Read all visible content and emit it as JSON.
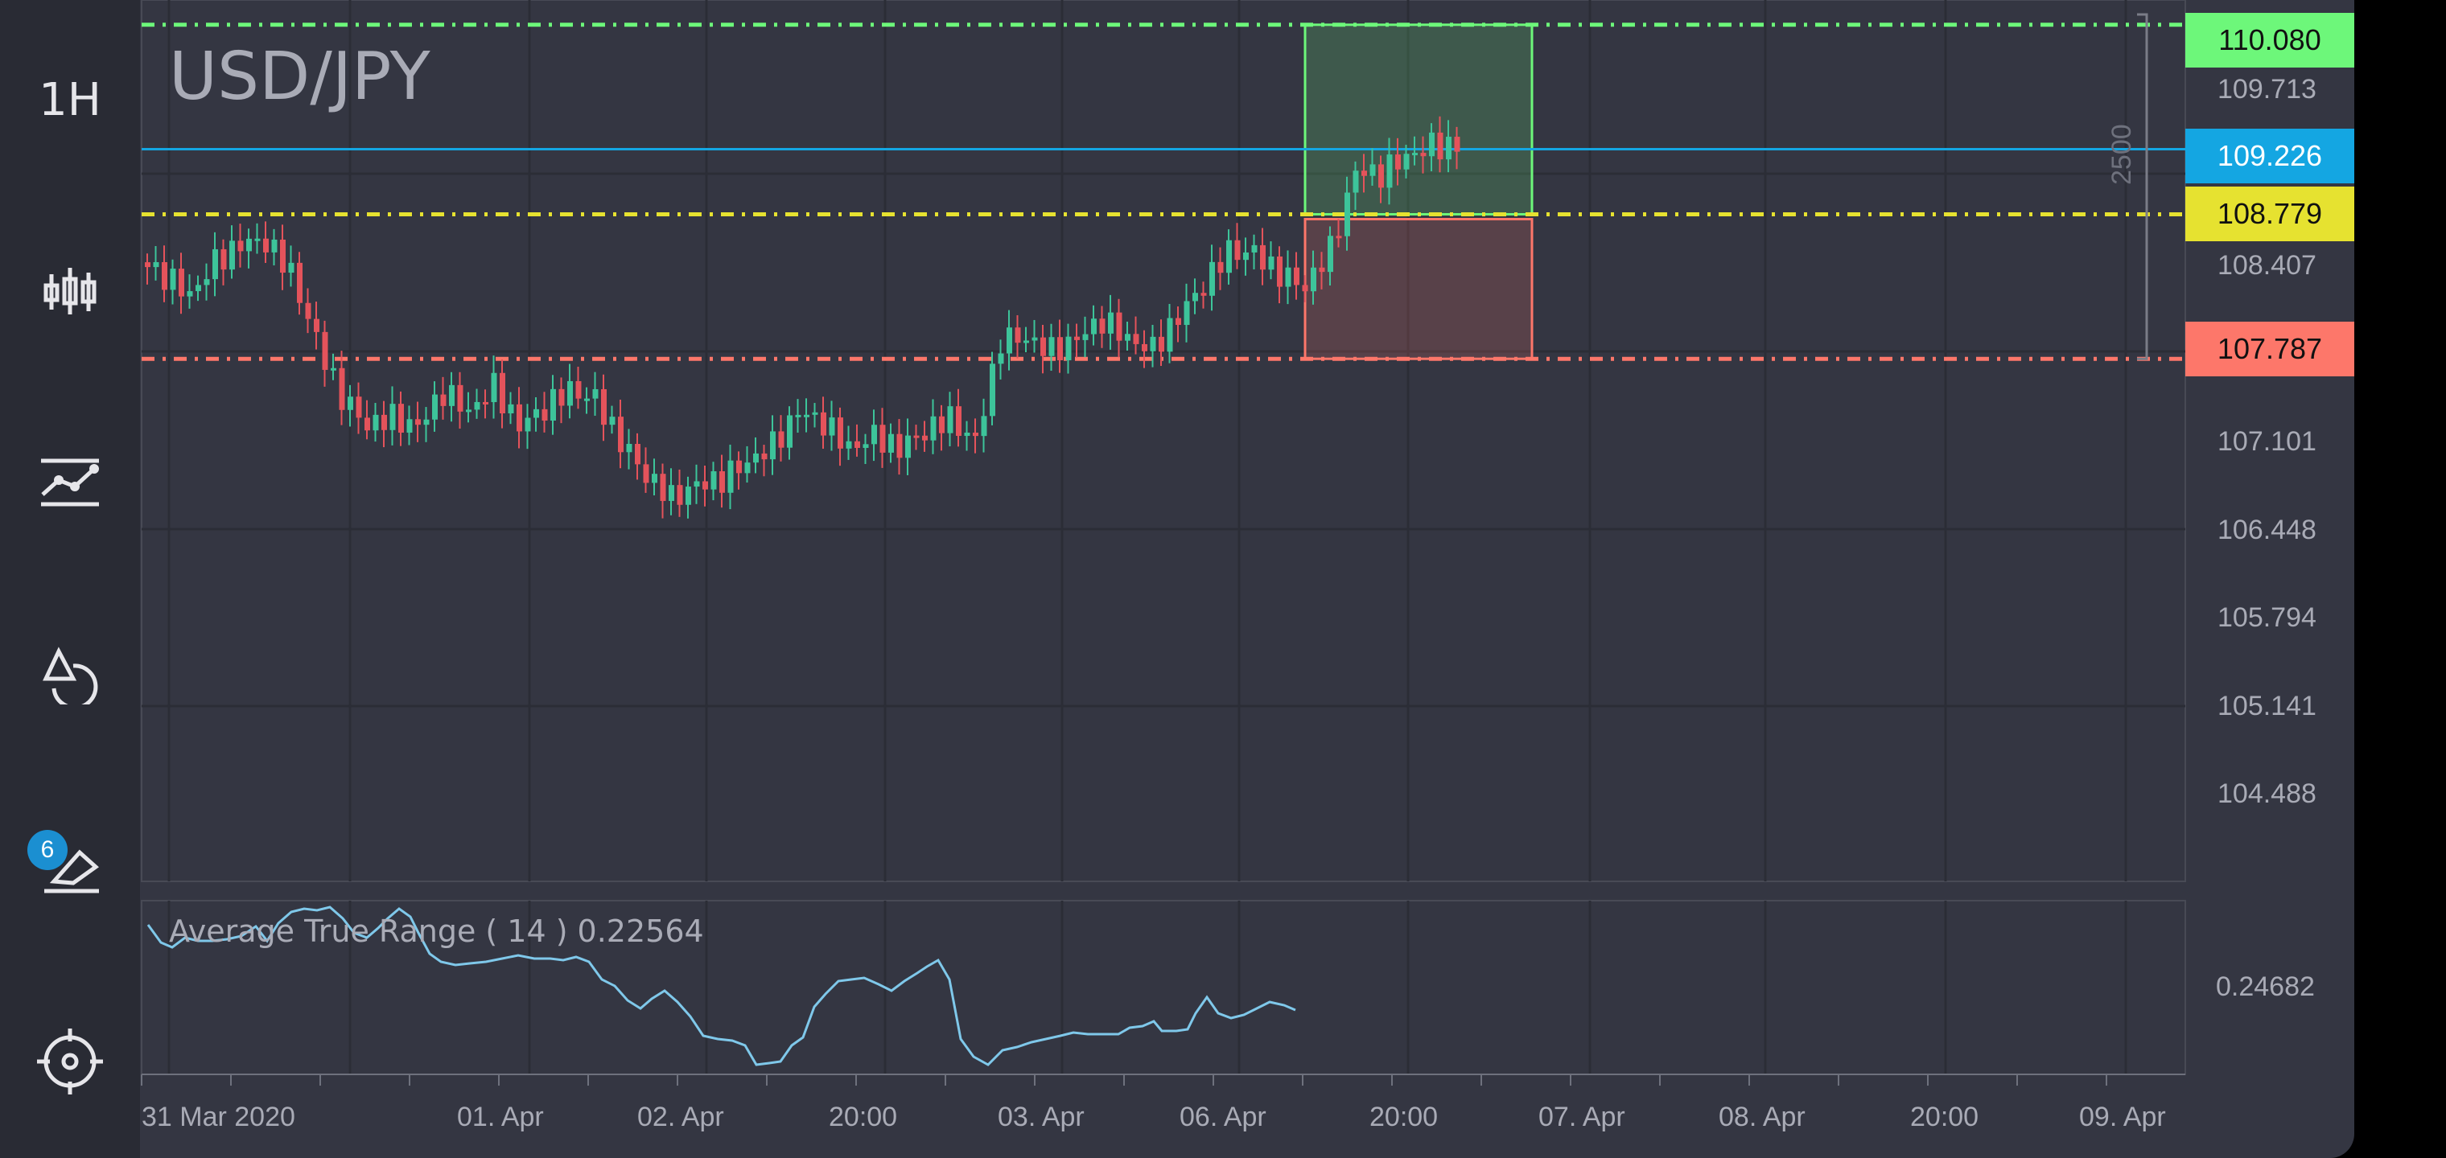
{
  "sidebar": {
    "timeframe_label": "1H",
    "drawings_badge": "6",
    "icons": [
      "timeframe",
      "candlestick-icon",
      "indicators-icon",
      "shapes-icon",
      "eraser-icon",
      "crosshair-icon"
    ]
  },
  "chart": {
    "symbol": "USD/JPY",
    "indicator": {
      "name": "Average True Range",
      "params": "( 14 )",
      "value": "0.22564"
    },
    "atr_axis_label": "0.24682",
    "ruler_label": "2500",
    "y_axis_labels": [
      "109.713",
      "108.407",
      "107.101",
      "106.448",
      "105.794",
      "105.141",
      "104.488"
    ],
    "price_tags": [
      {
        "value": "110.080",
        "bg": "#6df77a",
        "color": "#111111"
      },
      {
        "value": "109.226",
        "bg": "#14a6e2",
        "color": "#ffffff"
      },
      {
        "value": "108.779",
        "bg": "#e6e230",
        "color": "#111111"
      },
      {
        "value": "107.787",
        "bg": "#fd776a",
        "color": "#111111"
      }
    ],
    "x_axis_labels": [
      "31 Mar 2020",
      "01. Apr",
      "02. Apr",
      "20:00",
      "03. Apr",
      "06. Apr",
      "20:00",
      "07. Apr",
      "08. Apr",
      "20:00",
      "09. Apr"
    ],
    "colors": {
      "background": "#343642",
      "sidebar": "#292b34",
      "up": "#3dc49a",
      "down": "#e4535b",
      "take_profit": "#6df77a",
      "current": "#14a6e2",
      "entry": "#e6e230",
      "stop_loss": "#fd776a",
      "atr_line": "#7fc8ea"
    }
  },
  "chart_data": {
    "type": "candlestick",
    "title": "USD/JPY",
    "interval": "1H",
    "ylim": [
      104.2,
      110.25
    ],
    "levels": {
      "take_profit": 110.08,
      "current": 109.226,
      "entry": 108.779,
      "stop_loss": 107.787
    },
    "close_path": [
      108.45,
      108.35,
      108.25,
      108.45,
      108.55,
      108.6,
      108.4,
      107.9,
      107.5,
      107.35,
      107.4,
      107.3,
      107.55,
      107.45,
      107.6,
      107.3,
      107.45,
      107.6,
      107.5,
      107.2,
      107.0,
      106.85,
      106.9,
      106.95,
      107.1,
      107.2,
      107.4,
      107.35,
      107.2,
      107.25,
      107.15,
      107.3,
      107.4,
      107.2,
      107.9,
      107.95,
      107.85,
      107.9,
      108.05,
      107.95,
      107.85,
      108.05,
      108.3,
      108.55,
      108.5,
      108.35,
      108.3,
      108.55,
      109.05,
      109.05,
      109.2,
      109.25,
      109.226
    ],
    "atr": {
      "value": 0.22564,
      "axis_value": 0.24682
    }
  }
}
